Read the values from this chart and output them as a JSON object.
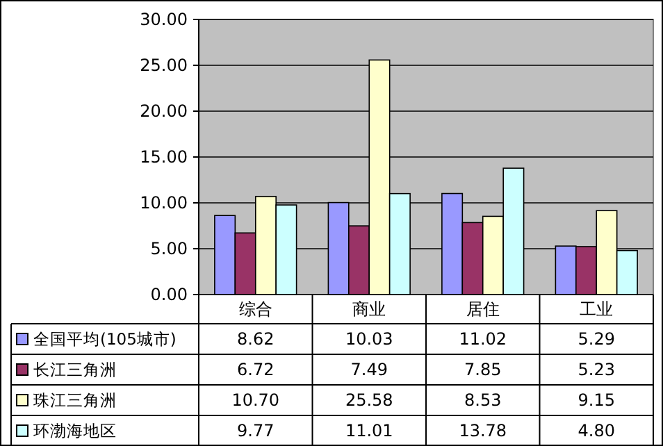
{
  "chart_data": {
    "type": "bar",
    "categories": [
      "综合",
      "商业",
      "居住",
      "工业"
    ],
    "series": [
      {
        "name": "全国平均(105城市)",
        "color": "#9999ff",
        "values": [
          8.62,
          10.03,
          11.02,
          5.29
        ],
        "value_labels": [
          "8.62",
          "10.03",
          "11.02",
          "5.29"
        ]
      },
      {
        "name": "长江三角洲",
        "color": "#993366",
        "values": [
          6.72,
          7.49,
          7.85,
          5.23
        ],
        "value_labels": [
          "6.72",
          "7.49",
          "7.85",
          "5.23"
        ]
      },
      {
        "name": "珠江三角洲",
        "color": "#ffffcc",
        "values": [
          10.7,
          25.58,
          8.53,
          9.15
        ],
        "value_labels": [
          "10.70",
          "25.58",
          "8.53",
          "9.15"
        ]
      },
      {
        "name": "环渤海地区",
        "color": "#ccffff",
        "values": [
          9.77,
          11.01,
          13.78,
          4.8
        ],
        "value_labels": [
          "9.77",
          "11.01",
          "13.78",
          "4.80"
        ]
      }
    ],
    "ylim": [
      0,
      30
    ],
    "yticks": [
      {
        "value": 0,
        "label": "0.00"
      },
      {
        "value": 5,
        "label": "5.00"
      },
      {
        "value": 10,
        "label": "10.00"
      },
      {
        "value": 15,
        "label": "15.00"
      },
      {
        "value": 20,
        "label": "20.00"
      },
      {
        "value": 25,
        "label": "25.00"
      },
      {
        "value": 30,
        "label": "30.00"
      }
    ],
    "grid": "y",
    "legend": "bottom"
  }
}
